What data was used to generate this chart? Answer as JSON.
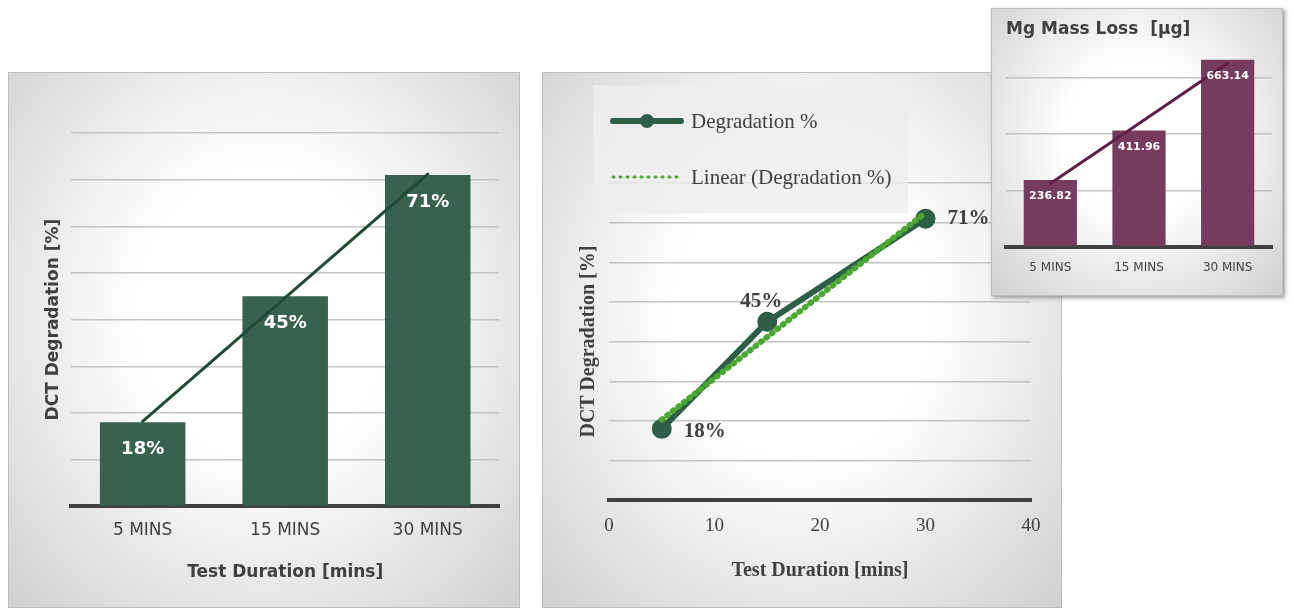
{
  "chart_data": [
    {
      "type": "bar",
      "categories": [
        "5 MINS",
        "15 MINS",
        "30 MINS"
      ],
      "xlabel": "Test Duration [mins]",
      "ylabel": "DCT Degradation [%]",
      "ylim": [
        0,
        80
      ],
      "yticks": [
        {
          "value": 0,
          "label": null
        },
        {
          "value": 10,
          "label": null
        },
        {
          "value": 20,
          "label": null
        },
        {
          "value": 30,
          "label": null
        },
        {
          "value": 40,
          "label": null
        },
        {
          "value": 50,
          "label": null
        },
        {
          "value": 60,
          "label": null
        },
        {
          "value": 70,
          "label": null
        },
        {
          "value": 80,
          "label": null
        }
      ],
      "tick_labels": "x",
      "grid": "y",
      "series": [
        {
          "type": "bar",
          "color": "#386150",
          "values": [
            18,
            45,
            71
          ],
          "value_labels": [
            "18%",
            "45%",
            "71%"
          ]
        },
        {
          "type": "line",
          "color": "#1e4a36",
          "values": [
            18.2,
            44.7,
            71.2
          ],
          "marker": "none"
        }
      ]
    },
    {
      "type": "line",
      "x": [
        5,
        15,
        30
      ],
      "xlim": [
        0,
        40
      ],
      "xticks": [
        0,
        10,
        20,
        30,
        40
      ],
      "xlabel": "Test Duration [mins]",
      "ylabel": "DCT Degradation [%]",
      "ylim": [
        0,
        80
      ],
      "yticks": [
        {
          "value": 0,
          "label": null
        },
        {
          "value": 10,
          "label": null
        },
        {
          "value": 20,
          "label": null
        },
        {
          "value": 30,
          "label": null
        },
        {
          "value": 40,
          "label": null
        },
        {
          "value": 50,
          "label": null
        },
        {
          "value": 60,
          "label": null
        },
        {
          "value": 70,
          "label": null
        },
        {
          "value": 80,
          "label": null
        }
      ],
      "tick_labels": "x",
      "grid": "y",
      "legend": "top left",
      "series": [
        {
          "name": "Degradation %",
          "color": "#2f5e48",
          "values": [
            18,
            45,
            71
          ],
          "value_labels": [
            "18%",
            "45%",
            "71%"
          ],
          "marker": "circle",
          "line_style": "solid"
        },
        {
          "name": "Linear (Degradation %)",
          "color": "#4aa832",
          "x": [
            5,
            30
          ],
          "values": [
            20.3,
            72.5
          ],
          "marker": "none",
          "line_style": "dotted"
        }
      ]
    },
    {
      "type": "bar",
      "title": "Mg Mass Loss  [μg]",
      "categories": [
        "5 MINS",
        "15 MINS",
        "30 MINS"
      ],
      "yticks": [
        {
          "value": 0,
          "label": null
        },
        {
          "value": 200,
          "label": null
        },
        {
          "value": 400,
          "label": null
        },
        {
          "value": 600,
          "label": null
        }
      ],
      "tick_labels": "x",
      "grid": "y",
      "series": [
        {
          "type": "bar",
          "color": "#763c5e",
          "values": [
            236.82,
            411.96,
            663.14
          ],
          "value_labels": [
            "236.82",
            "411.96",
            "663.14"
          ]
        },
        {
          "type": "line",
          "color": "#5e1f44",
          "values": [
            224.1,
            437.3,
            650.5
          ],
          "marker": "none"
        }
      ]
    }
  ]
}
